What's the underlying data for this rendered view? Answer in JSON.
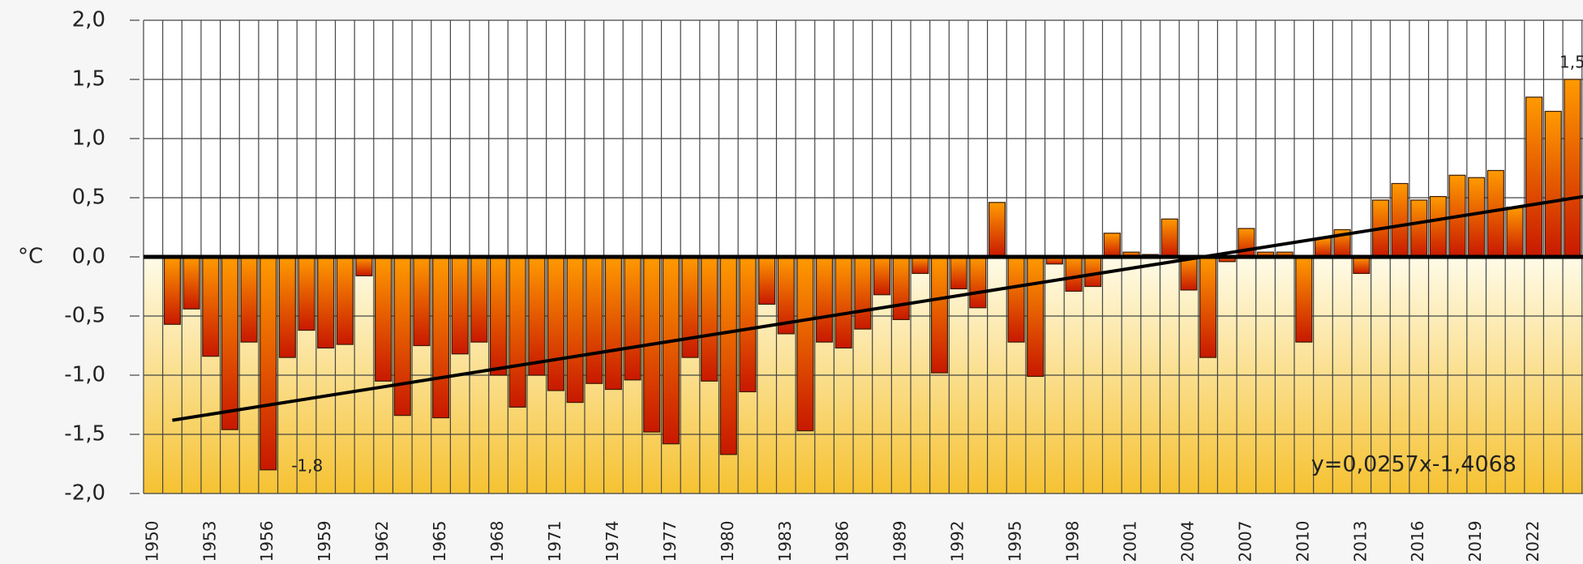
{
  "chart_data": {
    "type": "bar",
    "y_label": "°C",
    "categories": [
      "1950",
      null,
      null,
      "1953",
      null,
      null,
      "1956",
      null,
      null,
      "1959",
      null,
      null,
      "1962",
      null,
      null,
      "1965",
      null,
      null,
      "1968",
      null,
      null,
      "1971",
      null,
      null,
      "1974",
      null,
      null,
      "1977",
      null,
      null,
      "1980",
      null,
      null,
      "1983",
      null,
      null,
      "1986",
      null,
      null,
      "1989",
      null,
      null,
      "1992",
      null,
      null,
      "1995",
      null,
      null,
      "1998",
      null,
      null,
      "2001",
      null,
      null,
      "2004",
      null,
      null,
      "2007",
      null,
      null,
      "2010",
      null,
      null,
      "2013",
      null,
      null,
      "2016",
      null,
      null,
      "2019",
      null,
      null,
      "2022",
      null,
      null
    ],
    "values": [
      null,
      -0.57,
      -0.44,
      -0.84,
      -1.46,
      -0.72,
      -1.8,
      -0.85,
      -0.62,
      -0.77,
      -0.74,
      -0.16,
      -1.05,
      -1.34,
      -0.75,
      -1.36,
      -0.82,
      -0.72,
      -1.0,
      -1.27,
      -1.0,
      -1.13,
      -1.23,
      -1.07,
      -1.12,
      -1.04,
      -1.48,
      -1.58,
      -0.85,
      -1.05,
      -1.67,
      -1.14,
      -0.4,
      -0.65,
      -1.47,
      -0.72,
      -0.77,
      -0.61,
      -0.32,
      -0.53,
      -0.14,
      -0.98,
      -0.27,
      -0.43,
      0.46,
      -0.72,
      -1.01,
      -0.06,
      -0.29,
      -0.25,
      0.2,
      0.04,
      0.02,
      0.32,
      -0.28,
      -0.85,
      -0.04,
      0.24,
      0.04,
      0.04,
      -0.72,
      0.16,
      0.23,
      -0.14,
      0.48,
      0.62,
      0.48,
      0.51,
      0.69,
      0.67,
      0.73,
      0.42,
      1.35,
      1.23,
      1.5
    ],
    "value_labels": [
      null,
      null,
      null,
      null,
      null,
      null,
      "-1,8",
      null,
      null,
      null,
      null,
      null,
      null,
      null,
      null,
      null,
      null,
      null,
      null,
      null,
      null,
      null,
      null,
      null,
      null,
      null,
      null,
      null,
      null,
      null,
      null,
      null,
      null,
      null,
      null,
      null,
      null,
      null,
      null,
      null,
      null,
      null,
      null,
      null,
      null,
      null,
      null,
      null,
      null,
      null,
      null,
      null,
      null,
      null,
      null,
      null,
      null,
      null,
      null,
      null,
      null,
      null,
      null,
      null,
      null,
      null,
      null,
      null,
      null,
      null,
      null,
      null,
      null,
      null,
      "1,5"
    ],
    "color": "#c81800",
    "ylim": [
      -2,
      2
    ],
    "yticks": [
      {
        "value": -2,
        "label": "-2,0"
      },
      {
        "value": -1.5,
        "label": "-1,5"
      },
      {
        "value": -1,
        "label": "-1,0"
      },
      {
        "value": -0.5,
        "label": "-0,5"
      },
      {
        "value": 0,
        "label": "0,0"
      },
      {
        "value": 0.5,
        "label": "0,5"
      },
      {
        "value": 1,
        "label": "1,0"
      },
      {
        "value": 1.5,
        "label": "1,5"
      },
      {
        "value": 2,
        "label": "2,0"
      }
    ],
    "grid": true,
    "trendline": {
      "label": "y=0,0257x-1,4068",
      "slope": 0.0257,
      "intercept": -1.4068
    }
  }
}
